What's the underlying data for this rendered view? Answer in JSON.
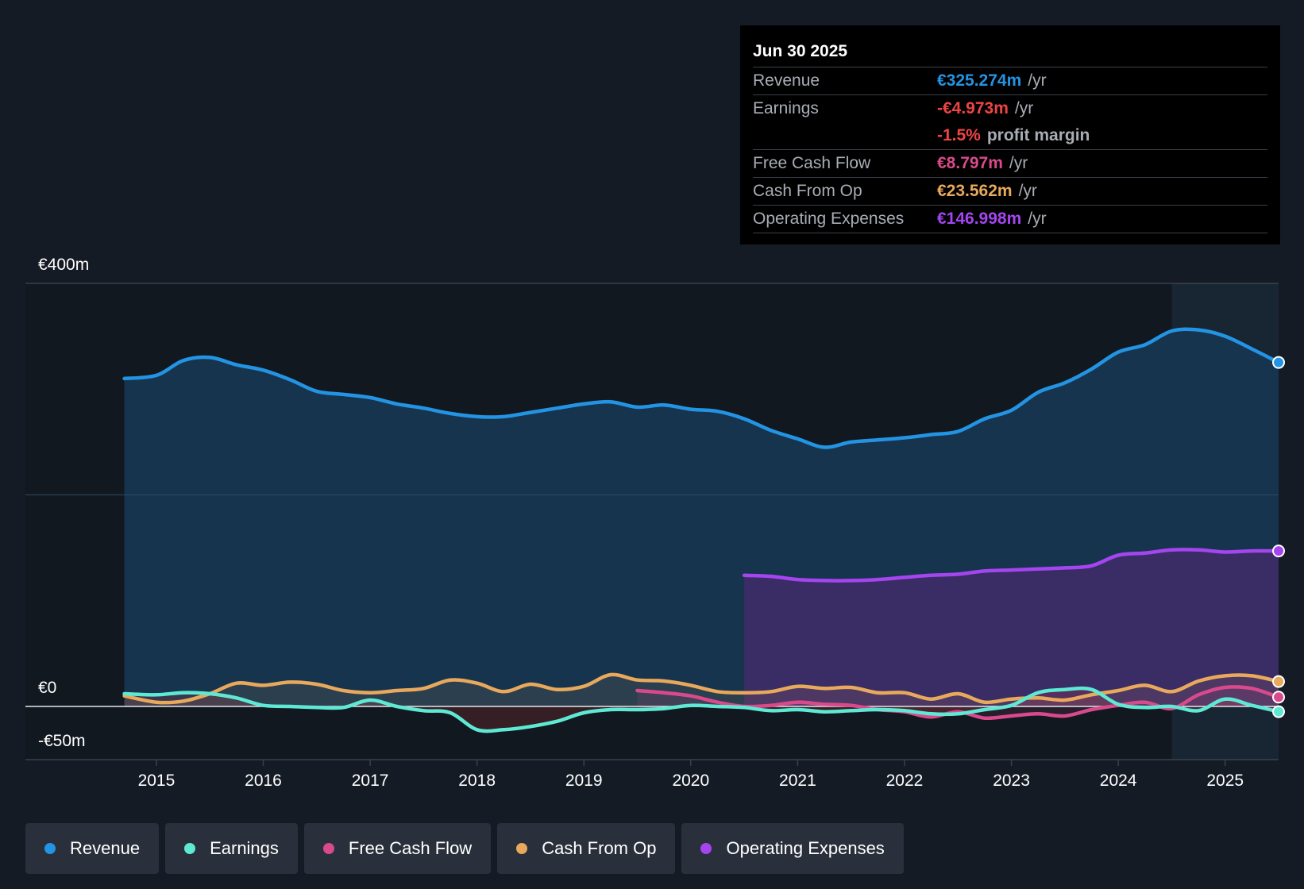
{
  "tooltip": {
    "date": "Jun 30 2025",
    "rows": [
      {
        "label": "Revenue",
        "value": "€325.274m",
        "unit": "/yr",
        "color": "#2394e4"
      },
      {
        "label": "Earnings",
        "value": "-€4.973m",
        "unit": "/yr",
        "color": "#ef4444"
      },
      {
        "label": "",
        "value": "-1.5%",
        "unit": "profit margin",
        "color": "#ef4444"
      },
      {
        "label": "Free Cash Flow",
        "value": "€8.797m",
        "unit": "/yr",
        "color": "#d84a8c"
      },
      {
        "label": "Cash From Op",
        "value": "€23.562m",
        "unit": "/yr",
        "color": "#e8a95c"
      },
      {
        "label": "Operating Expenses",
        "value": "€146.998m",
        "unit": "/yr",
        "color": "#a445f0"
      }
    ]
  },
  "legend": [
    {
      "label": "Revenue",
      "color": "#2394e4"
    },
    {
      "label": "Earnings",
      "color": "#5ee9d4"
    },
    {
      "label": "Free Cash Flow",
      "color": "#d84a8c"
    },
    {
      "label": "Cash From Op",
      "color": "#e8a95c"
    },
    {
      "label": "Operating Expenses",
      "color": "#a445f0"
    }
  ],
  "chart_data": {
    "type": "area",
    "currency_unit": "€m",
    "y_labels": [
      "€400m",
      "€0",
      "-€50m"
    ],
    "ylim": [
      -50,
      400
    ],
    "xlim": [
      2014.25,
      2025.5
    ],
    "x_ticks": [
      2015,
      2016,
      2017,
      2018,
      2019,
      2020,
      2021,
      2022,
      2023,
      2024,
      2025
    ],
    "x_tick_labels": [
      "2015",
      "2016",
      "2017",
      "2018",
      "2019",
      "2020",
      "2021",
      "2022",
      "2023",
      "2024",
      "2025"
    ],
    "highlight_from": 2024.5,
    "series": [
      {
        "name": "Revenue",
        "color": "#2394e4",
        "fill": "#17344f",
        "points": [
          [
            2014.7,
            310
          ],
          [
            2015.0,
            313
          ],
          [
            2015.25,
            327
          ],
          [
            2015.5,
            330
          ],
          [
            2015.75,
            323
          ],
          [
            2016.0,
            318
          ],
          [
            2016.25,
            309
          ],
          [
            2016.5,
            298
          ],
          [
            2016.75,
            295
          ],
          [
            2017.0,
            292
          ],
          [
            2017.25,
            286
          ],
          [
            2017.5,
            282
          ],
          [
            2017.75,
            277
          ],
          [
            2018.0,
            274
          ],
          [
            2018.25,
            274
          ],
          [
            2018.5,
            278
          ],
          [
            2018.75,
            282
          ],
          [
            2019.0,
            286
          ],
          [
            2019.25,
            288
          ],
          [
            2019.5,
            283
          ],
          [
            2019.75,
            285
          ],
          [
            2020.0,
            281
          ],
          [
            2020.25,
            279
          ],
          [
            2020.5,
            272
          ],
          [
            2020.75,
            261
          ],
          [
            2021.0,
            253
          ],
          [
            2021.25,
            245
          ],
          [
            2021.5,
            250
          ],
          [
            2021.75,
            252
          ],
          [
            2022.0,
            254
          ],
          [
            2022.25,
            257
          ],
          [
            2022.5,
            260
          ],
          [
            2022.75,
            272
          ],
          [
            2023.0,
            280
          ],
          [
            2023.25,
            297
          ],
          [
            2023.5,
            306
          ],
          [
            2023.75,
            319
          ],
          [
            2024.0,
            335
          ],
          [
            2024.25,
            342
          ],
          [
            2024.5,
            355
          ],
          [
            2024.75,
            356
          ],
          [
            2025.0,
            350
          ],
          [
            2025.25,
            338
          ],
          [
            2025.5,
            325.274
          ]
        ]
      },
      {
        "name": "Operating Expenses",
        "color": "#a445f0",
        "fill": "#3a2c64",
        "points": [
          [
            2020.5,
            124
          ],
          [
            2020.75,
            123
          ],
          [
            2021.0,
            120
          ],
          [
            2021.25,
            119
          ],
          [
            2021.5,
            119
          ],
          [
            2021.75,
            120
          ],
          [
            2022.0,
            122
          ],
          [
            2022.25,
            124
          ],
          [
            2022.5,
            125
          ],
          [
            2022.75,
            128
          ],
          [
            2023.0,
            129
          ],
          [
            2023.25,
            130
          ],
          [
            2023.5,
            131
          ],
          [
            2023.75,
            133
          ],
          [
            2024.0,
            143
          ],
          [
            2024.25,
            145
          ],
          [
            2024.5,
            148
          ],
          [
            2024.75,
            148
          ],
          [
            2025.0,
            146
          ],
          [
            2025.25,
            147
          ],
          [
            2025.5,
            146.998
          ]
        ]
      },
      {
        "name": "Cash From Op",
        "color": "#e8a95c",
        "fill": "rgba(232,169,92,0.10)",
        "points": [
          [
            2014.7,
            10
          ],
          [
            2015.0,
            4
          ],
          [
            2015.25,
            5
          ],
          [
            2015.5,
            12
          ],
          [
            2015.75,
            22
          ],
          [
            2016.0,
            20
          ],
          [
            2016.25,
            23
          ],
          [
            2016.5,
            21
          ],
          [
            2016.75,
            15
          ],
          [
            2017.0,
            13
          ],
          [
            2017.25,
            15
          ],
          [
            2017.5,
            17
          ],
          [
            2017.75,
            25
          ],
          [
            2018.0,
            22
          ],
          [
            2018.25,
            14
          ],
          [
            2018.5,
            21
          ],
          [
            2018.75,
            16
          ],
          [
            2019.0,
            19
          ],
          [
            2019.25,
            30
          ],
          [
            2019.5,
            25
          ],
          [
            2019.75,
            24
          ],
          [
            2020.0,
            20
          ],
          [
            2020.25,
            14
          ],
          [
            2020.5,
            13
          ],
          [
            2020.75,
            14
          ],
          [
            2021.0,
            19
          ],
          [
            2021.25,
            17
          ],
          [
            2021.5,
            18
          ],
          [
            2021.75,
            13
          ],
          [
            2022.0,
            13
          ],
          [
            2022.25,
            7
          ],
          [
            2022.5,
            12
          ],
          [
            2022.75,
            4
          ],
          [
            2023.0,
            7
          ],
          [
            2023.25,
            8
          ],
          [
            2023.5,
            6
          ],
          [
            2023.75,
            11
          ],
          [
            2024.0,
            15
          ],
          [
            2024.25,
            20
          ],
          [
            2024.5,
            14
          ],
          [
            2024.75,
            24
          ],
          [
            2025.0,
            29
          ],
          [
            2025.25,
            29
          ],
          [
            2025.5,
            23.562
          ]
        ]
      },
      {
        "name": "Free Cash Flow",
        "color": "#d84a8c",
        "fill": "rgba(216,74,140,0.12)",
        "points": [
          [
            2019.5,
            15
          ],
          [
            2019.75,
            13
          ],
          [
            2020.0,
            10
          ],
          [
            2020.25,
            4
          ],
          [
            2020.5,
            0
          ],
          [
            2020.75,
            1
          ],
          [
            2021.0,
            4
          ],
          [
            2021.25,
            2
          ],
          [
            2021.5,
            1
          ],
          [
            2021.75,
            -3
          ],
          [
            2022.0,
            -5
          ],
          [
            2022.25,
            -10
          ],
          [
            2022.5,
            -5
          ],
          [
            2022.75,
            -11
          ],
          [
            2023.0,
            -9
          ],
          [
            2023.25,
            -7
          ],
          [
            2023.5,
            -9
          ],
          [
            2023.75,
            -3
          ],
          [
            2024.0,
            1
          ],
          [
            2024.25,
            4
          ],
          [
            2024.5,
            -2
          ],
          [
            2024.75,
            11
          ],
          [
            2025.0,
            18
          ],
          [
            2025.25,
            17
          ],
          [
            2025.5,
            8.797
          ]
        ]
      },
      {
        "name": "Earnings",
        "color": "#5ee9d4",
        "fill": "rgba(239,68,68,0.16)",
        "points": [
          [
            2014.7,
            12
          ],
          [
            2015.0,
            11
          ],
          [
            2015.25,
            13
          ],
          [
            2015.5,
            12
          ],
          [
            2015.75,
            8
          ],
          [
            2016.0,
            1
          ],
          [
            2016.25,
            0
          ],
          [
            2016.5,
            -1
          ],
          [
            2016.75,
            -1
          ],
          [
            2017.0,
            6
          ],
          [
            2017.25,
            0
          ],
          [
            2017.5,
            -4
          ],
          [
            2017.75,
            -6
          ],
          [
            2018.0,
            -22
          ],
          [
            2018.25,
            -22
          ],
          [
            2018.5,
            -19
          ],
          [
            2018.75,
            -14
          ],
          [
            2019.0,
            -6
          ],
          [
            2019.25,
            -3
          ],
          [
            2019.5,
            -3
          ],
          [
            2019.75,
            -2
          ],
          [
            2020.0,
            1
          ],
          [
            2020.25,
            0
          ],
          [
            2020.5,
            -1
          ],
          [
            2020.75,
            -4
          ],
          [
            2021.0,
            -3
          ],
          [
            2021.25,
            -5
          ],
          [
            2021.5,
            -4
          ],
          [
            2021.75,
            -3
          ],
          [
            2022.0,
            -4
          ],
          [
            2022.25,
            -7
          ],
          [
            2022.5,
            -7
          ],
          [
            2022.75,
            -3
          ],
          [
            2023.0,
            1
          ],
          [
            2023.25,
            13
          ],
          [
            2023.5,
            16
          ],
          [
            2023.75,
            16
          ],
          [
            2024.0,
            2
          ],
          [
            2024.25,
            -1
          ],
          [
            2024.5,
            0
          ],
          [
            2024.75,
            -4
          ],
          [
            2025.0,
            7
          ],
          [
            2025.25,
            1
          ],
          [
            2025.5,
            -4.973
          ]
        ]
      }
    ]
  }
}
